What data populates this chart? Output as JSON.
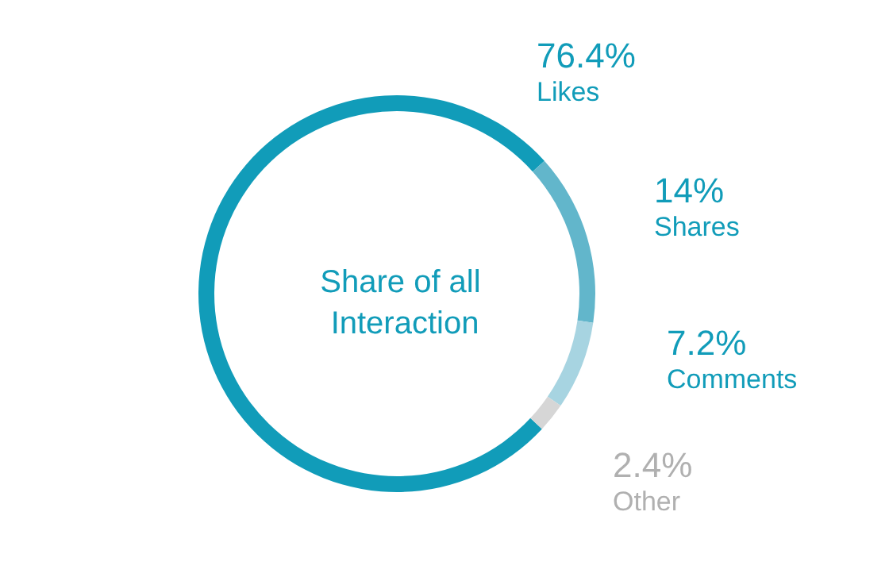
{
  "chart_data": {
    "type": "donut",
    "title": "Share of all Interaction",
    "categories": [
      "Likes",
      "Shares",
      "Comments",
      "Other"
    ],
    "values": [
      76.4,
      14,
      7.2,
      2.4
    ],
    "colors": [
      "#119cb9",
      "#62b6cb",
      "#a7d4e1",
      "#d6d6d6"
    ],
    "value_labels": [
      "76.4%",
      "14%",
      "7.2%",
      "2.4%"
    ],
    "legend": false
  }
}
